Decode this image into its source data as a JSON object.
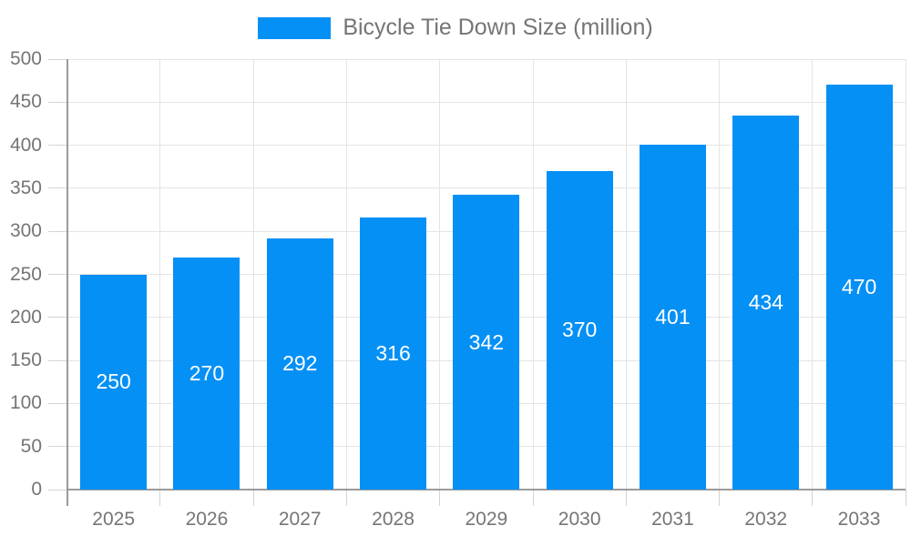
{
  "chart_data": {
    "type": "bar",
    "title": "Bicycle Tie Down Size (million)",
    "series_name": "Bicycle Tie Down Size (million)",
    "categories": [
      "2025",
      "2026",
      "2027",
      "2028",
      "2029",
      "2030",
      "2031",
      "2032",
      "2033"
    ],
    "values": [
      250,
      270,
      292,
      316,
      342,
      370,
      401,
      434,
      470
    ],
    "ylim": [
      0,
      500
    ],
    "ytick_step": 50,
    "ytick_labels": [
      "0",
      "50",
      "100",
      "150",
      "200",
      "250",
      "300",
      "350",
      "400",
      "450",
      "500"
    ],
    "grid": true,
    "legend_position": "top",
    "bar_color": "#0590f5",
    "bar_label_color": "#ffffff",
    "gridline_color": "#e4e4e4",
    "tick_color": "#d4d4d4",
    "axis_color": "#9b9b9b",
    "text_color": "#757575"
  }
}
